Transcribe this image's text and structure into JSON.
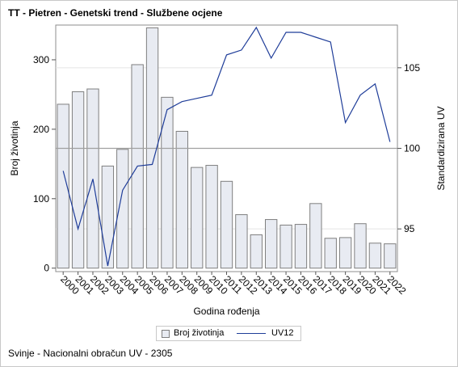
{
  "title": "TT - Pietren - Genetski trend - Službene ocjene",
  "footnote": "Svinje - Nacionalni obračun UV - 2305",
  "colors": {
    "bar_fill": "#e8ebf2",
    "bar_stroke": "#7f7f7f",
    "line": "#1f3d99",
    "refline": "#a0a0a0"
  },
  "chart_data": {
    "type": "bar+line",
    "categories": [
      "2000",
      "2001",
      "2002",
      "2003",
      "2004",
      "2005",
      "2006",
      "2007",
      "2008",
      "2009",
      "2010",
      "2011",
      "2012",
      "2013",
      "2014",
      "2015",
      "2016",
      "2017",
      "2018",
      "2019",
      "2020",
      "2021",
      "2022"
    ],
    "series": [
      {
        "name": "Broj životinja",
        "type": "bar",
        "axis": "left",
        "values": [
          236,
          254,
          258,
          147,
          171,
          293,
          346,
          246,
          197,
          145,
          148,
          125,
          77,
          48,
          70,
          62,
          63,
          93,
          43,
          44,
          64,
          36,
          35
        ]
      },
      {
        "name": "UV12",
        "type": "line",
        "axis": "right",
        "values": [
          98.6,
          95.0,
          98.1,
          92.7,
          97.4,
          98.9,
          99.0,
          102.4,
          102.9,
          103.1,
          103.3,
          105.8,
          106.1,
          107.5,
          105.6,
          107.2,
          107.2,
          106.9,
          106.6,
          101.6,
          103.3,
          104.0,
          100.4
        ]
      }
    ],
    "xlabel": "Godina rođenja",
    "ylabel": "Broj životinja",
    "y2label": "Standardizirana UV",
    "y_ticks": [
      0,
      100,
      200,
      300
    ],
    "y_range": [
      -5,
      350
    ],
    "y2_ticks": [
      95,
      100,
      105
    ],
    "y2_range": [
      92.35,
      107.65
    ],
    "reference_line_y2": 100,
    "grid": false,
    "legend": "bottom"
  }
}
